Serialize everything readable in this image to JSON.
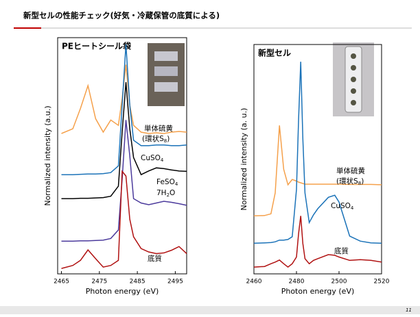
{
  "header": {
    "title": "新型セルの性能チェック(好気・冷蔵保管の底質による)"
  },
  "page_number": "11",
  "chart_data": [
    {
      "type": "line",
      "title": "PEヒートシール袋",
      "x_label": "Photon energy (eV)",
      "y_label": "Normalized intensity (a.u.)",
      "x": [
        2465,
        2468,
        2470,
        2472,
        2474,
        2476,
        2478,
        2480,
        2481,
        2482,
        2483,
        2484,
        2486,
        2488,
        2490,
        2492,
        2494,
        2496,
        2498
      ],
      "xlim": [
        2464,
        2498
      ],
      "xticks": [
        2465,
        2475,
        2485,
        2495
      ],
      "ylim": [
        0,
        7
      ],
      "series": [
        {
          "label_lines": [
            [
              "単体硫黄"
            ],
            [
              "(環状S",
              "8",
              ")"
            ]
          ],
          "color": "#f5a04a",
          "values": [
            4.16,
            4.3,
            4.9,
            5.58,
            4.6,
            4.2,
            4.56,
            4.4,
            5.2,
            6.2,
            5.0,
            4.4,
            4.2,
            4.16,
            4.18,
            4.16,
            4.2,
            4.22,
            4.2
          ]
        },
        {
          "label_lines": [
            [
              "CuSO",
              "4"
            ]
          ],
          "color": "#1a72b8",
          "values": [
            2.94,
            2.94,
            2.95,
            2.96,
            2.96,
            2.97,
            3.0,
            3.2,
            5.0,
            6.8,
            5.0,
            3.96,
            3.8,
            3.8,
            3.82,
            3.82,
            3.8,
            3.8,
            3.82
          ]
        },
        {
          "label_lines": [
            [
              "FeSO",
              "4"
            ],
            [
              "7H",
              "2",
              "O"
            ]
          ],
          "color": "#000000",
          "values": [
            2.23,
            2.23,
            2.24,
            2.24,
            2.25,
            2.26,
            2.3,
            2.6,
            4.2,
            5.68,
            4.3,
            3.45,
            2.94,
            3.05,
            3.14,
            3.12,
            3.08,
            3.05,
            3.04
          ]
        },
        {
          "color": "#4b3a9c",
          "values": [
            0.97,
            0.97,
            0.98,
            0.98,
            0.99,
            1.0,
            1.05,
            1.3,
            2.8,
            4.56,
            3.5,
            2.23,
            2.1,
            2.05,
            2.1,
            2.15,
            2.12,
            2.08,
            2.03
          ]
        },
        {
          "label_lines": [
            [
              "底質"
            ]
          ],
          "color": "#b01010",
          "values": [
            0.16,
            0.25,
            0.4,
            0.71,
            0.45,
            0.2,
            0.25,
            0.4,
            3.04,
            2.9,
            1.62,
            1.1,
            0.75,
            0.65,
            0.6,
            0.62,
            0.7,
            0.81,
            0.6
          ]
        }
      ]
    },
    {
      "type": "line",
      "title": "新型セル",
      "x_label": "Photon energy  (eV)",
      "y_label": "Normalized intensity  (a. u.)",
      "x": [
        2460,
        2465,
        2468,
        2470,
        2472,
        2474,
        2476,
        2478,
        2480,
        2481,
        2482,
        2483,
        2484,
        2486,
        2488,
        2490,
        2495,
        2498,
        2500,
        2505,
        2510,
        2515,
        2520
      ],
      "xlim": [
        2460,
        2520
      ],
      "xticks": [
        2460,
        2480,
        2500,
        2520
      ],
      "ylim": [
        0,
        6.8
      ],
      "series": [
        {
          "label_lines": [
            [
              "単体硫黄"
            ],
            [
              "(環状S",
              "8",
              ")"
            ]
          ],
          "color": "#f5a04a",
          "values": [
            1.72,
            1.73,
            1.78,
            2.4,
            4.4,
            3.1,
            2.64,
            2.8,
            2.75,
            2.72,
            2.7,
            2.68,
            2.66,
            2.66,
            2.66,
            2.66,
            2.66,
            2.66,
            2.66,
            2.65,
            2.65,
            2.65,
            2.64
          ]
        },
        {
          "label_lines": [
            [
              "CuSO",
              "4"
            ]
          ],
          "color": "#1a72b8",
          "values": [
            0.91,
            0.92,
            0.93,
            0.95,
            1.0,
            1.0,
            1.02,
            1.1,
            2.5,
            4.6,
            6.29,
            4.0,
            2.4,
            1.52,
            1.75,
            1.93,
            2.27,
            2.33,
            2.13,
            1.12,
            0.97,
            0.92,
            0.91
          ]
        },
        {
          "label_lines": [
            [
              "底質"
            ]
          ],
          "color": "#b01010",
          "values": [
            0.2,
            0.22,
            0.3,
            0.35,
            0.41,
            0.3,
            0.2,
            0.3,
            0.5,
            1.2,
            1.72,
            0.9,
            0.45,
            0.3,
            0.4,
            0.45,
            0.57,
            0.55,
            0.5,
            0.4,
            0.42,
            0.4,
            0.35
          ]
        }
      ]
    }
  ]
}
